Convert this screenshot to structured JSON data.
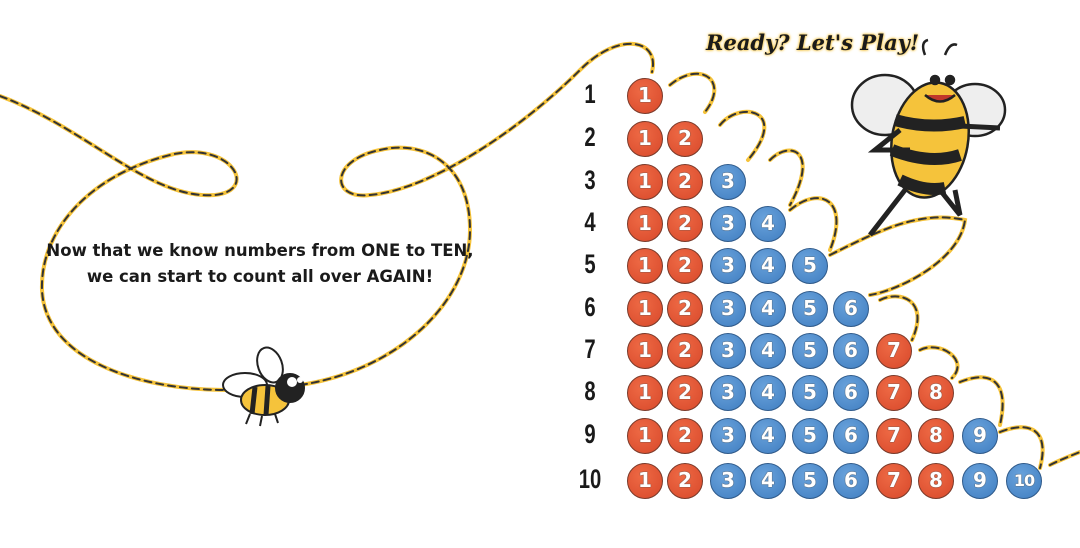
{
  "title": "Ready? Let's Play!",
  "story": {
    "line1": "Now that we know numbers from ONE to TEN,",
    "line2": "we can start to count all over AGAIN!"
  },
  "colors": {
    "red": "#e0502e",
    "blue": "#4a86c8",
    "path": "#f5c33b"
  },
  "rows": [
    {
      "label": "1",
      "balls": [
        [
          "1",
          "red"
        ]
      ]
    },
    {
      "label": "2",
      "balls": [
        [
          "1",
          "red"
        ],
        [
          "2",
          "red"
        ]
      ]
    },
    {
      "label": "3",
      "balls": [
        [
          "1",
          "red"
        ],
        [
          "2",
          "red"
        ],
        [
          "3",
          "blue"
        ]
      ]
    },
    {
      "label": "4",
      "balls": [
        [
          "1",
          "red"
        ],
        [
          "2",
          "red"
        ],
        [
          "3",
          "blue"
        ],
        [
          "4",
          "blue"
        ]
      ]
    },
    {
      "label": "5",
      "balls": [
        [
          "1",
          "red"
        ],
        [
          "2",
          "red"
        ],
        [
          "3",
          "blue"
        ],
        [
          "4",
          "blue"
        ],
        [
          "5",
          "blue"
        ]
      ]
    },
    {
      "label": "6",
      "balls": [
        [
          "1",
          "red"
        ],
        [
          "2",
          "red"
        ],
        [
          "3",
          "blue"
        ],
        [
          "4",
          "blue"
        ],
        [
          "5",
          "blue"
        ],
        [
          "6",
          "blue"
        ]
      ]
    },
    {
      "label": "7",
      "balls": [
        [
          "1",
          "red"
        ],
        [
          "2",
          "red"
        ],
        [
          "3",
          "blue"
        ],
        [
          "4",
          "blue"
        ],
        [
          "5",
          "blue"
        ],
        [
          "6",
          "blue"
        ],
        [
          "7",
          "red"
        ]
      ]
    },
    {
      "label": "8",
      "balls": [
        [
          "1",
          "red"
        ],
        [
          "2",
          "red"
        ],
        [
          "3",
          "blue"
        ],
        [
          "4",
          "blue"
        ],
        [
          "5",
          "blue"
        ],
        [
          "6",
          "blue"
        ],
        [
          "7",
          "red"
        ],
        [
          "8",
          "red"
        ]
      ]
    },
    {
      "label": "9",
      "balls": [
        [
          "1",
          "red"
        ],
        [
          "2",
          "red"
        ],
        [
          "3",
          "blue"
        ],
        [
          "4",
          "blue"
        ],
        [
          "5",
          "blue"
        ],
        [
          "6",
          "blue"
        ],
        [
          "7",
          "red"
        ],
        [
          "8",
          "red"
        ],
        [
          "9",
          "blue"
        ]
      ]
    },
    {
      "label": "10",
      "balls": [
        [
          "1",
          "red"
        ],
        [
          "2",
          "red"
        ],
        [
          "3",
          "blue"
        ],
        [
          "4",
          "blue"
        ],
        [
          "5",
          "blue"
        ],
        [
          "6",
          "blue"
        ],
        [
          "7",
          "red"
        ],
        [
          "8",
          "red"
        ],
        [
          "9",
          "blue"
        ],
        [
          "10",
          "blue"
        ]
      ]
    }
  ],
  "icons": [
    "small-bee-icon",
    "dancing-bee-icon"
  ]
}
